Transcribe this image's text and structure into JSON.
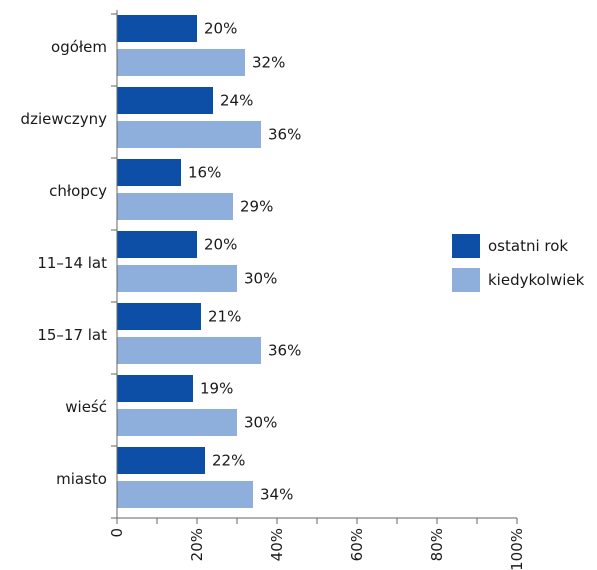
{
  "chart_data": {
    "type": "bar",
    "orientation": "horizontal",
    "categories": [
      "ogółem",
      "dziewczyny",
      "chłopcy",
      "11–14 lat",
      "15–17 lat",
      "wieść",
      "miasto"
    ],
    "series": [
      {
        "name": "ostatni rok",
        "color": "#0d4ea6",
        "values": [
          20,
          24,
          16,
          20,
          21,
          19,
          22
        ]
      },
      {
        "name": "kiedykolwiek",
        "color": "#8eaedb",
        "values": [
          32,
          36,
          29,
          30,
          36,
          30,
          34
        ]
      }
    ],
    "value_suffix": "%",
    "xlim": [
      0,
      100
    ],
    "ticks": [
      0,
      20,
      40,
      60,
      80,
      100
    ],
    "tick_labels": [
      "0",
      "20%",
      "40%",
      "60%",
      "80%",
      "100%"
    ],
    "grid": false,
    "legend_position": "right"
  }
}
